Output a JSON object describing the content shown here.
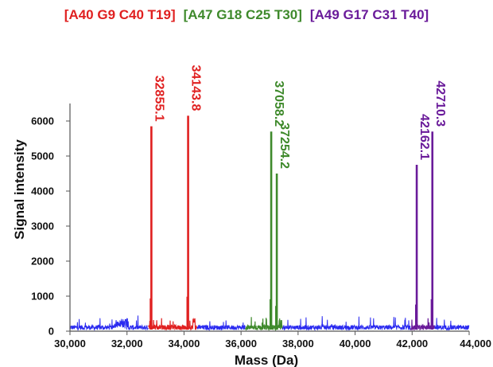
{
  "chart_data": {
    "type": "line",
    "title": "",
    "xlabel": "Mass (Da)",
    "ylabel": "Signal intensity",
    "xlim": [
      30000,
      44000
    ],
    "ylim": [
      0,
      6500
    ],
    "x_ticks": [
      "30,000",
      "32,000",
      "34,000",
      "36,000",
      "38,000",
      "40,000",
      "42,000",
      "44,000"
    ],
    "y_ticks": [
      "0",
      "1000",
      "2000",
      "3000",
      "4000",
      "5000",
      "6000"
    ],
    "grid": false,
    "legend_position": "top",
    "series": [
      {
        "name": "[A40 G9 C40 T19]",
        "color": "#e02020",
        "peaks": [
          {
            "label": "32855.1",
            "x": 32855.1,
            "y": 5850
          },
          {
            "label": "34143.8",
            "x": 34143.8,
            "y": 6150
          }
        ]
      },
      {
        "name": "[A47 G18 C25 T30]",
        "color": "#3f8a2c",
        "peaks": [
          {
            "label": "37058.2",
            "x": 37058.2,
            "y": 5700
          },
          {
            "label": "37254.2",
            "x": 37254.2,
            "y": 4500
          }
        ]
      },
      {
        "name": "[A49 G17 C31 T40]",
        "color": "#6a1b9a",
        "peaks": [
          {
            "label": "42162.1",
            "x": 42162.1,
            "y": 4750
          },
          {
            "label": "42710.3",
            "x": 42710.3,
            "y": 5700
          }
        ]
      },
      {
        "name": "",
        "color": "#2a2af0",
        "role": "baseline noise",
        "x_range": [
          30000,
          44000
        ],
        "approx_level": 150
      }
    ]
  }
}
